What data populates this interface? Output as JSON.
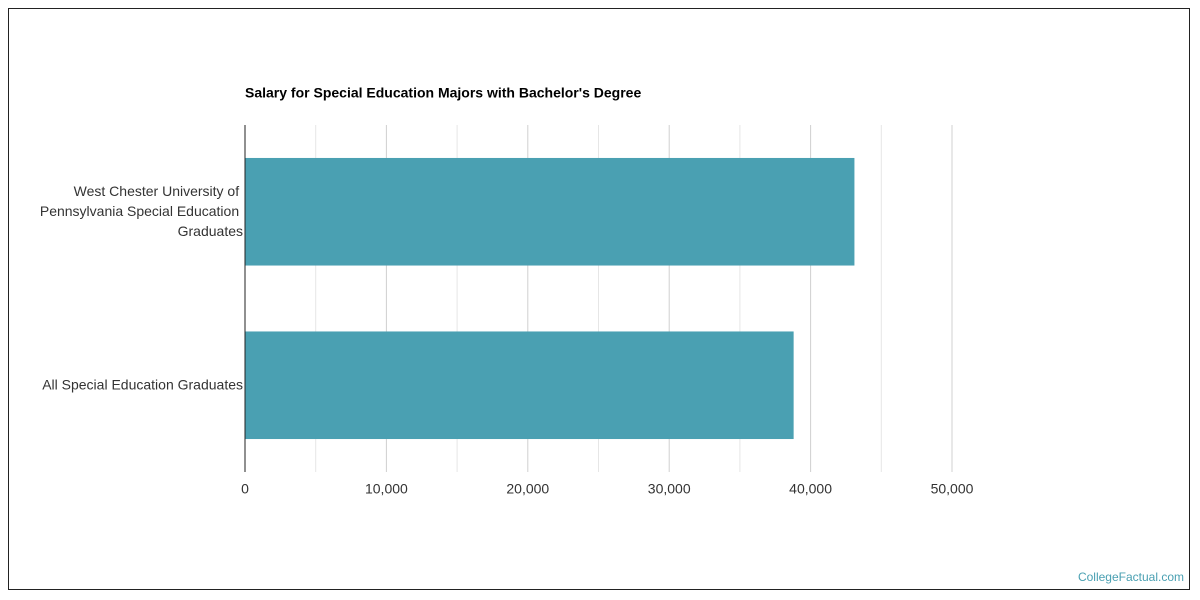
{
  "chart_data": {
    "type": "bar",
    "orientation": "horizontal",
    "title": "Salary for Special Education Majors with Bachelor's Degree",
    "categories": [
      "West Chester University of Pennsylvania Special Education Graduates",
      "All Special Education Graduates"
    ],
    "values": [
      43100,
      38800
    ],
    "color": "#4aa0b2",
    "xlim": [
      0,
      50000
    ],
    "xticks": [
      0,
      {
        "value": 10000,
        "label": "10,000"
      },
      {
        "value": 20000,
        "label": "20,000"
      },
      {
        "value": 30000,
        "label": "30,000"
      },
      {
        "value": 40000,
        "label": "40,000"
      },
      {
        "value": 50000,
        "label": "50,000"
      }
    ],
    "minor_xticks": [
      5000,
      15000,
      25000,
      35000,
      45000
    ],
    "grid": true
  },
  "footer": {
    "source": "CollegeFactual.com"
  }
}
